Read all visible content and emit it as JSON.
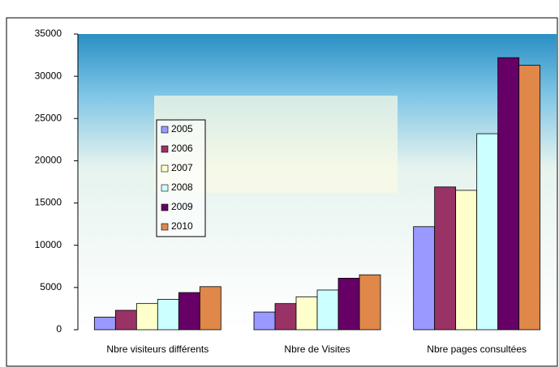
{
  "chart_data": {
    "type": "bar",
    "categories": [
      "Nbre visiteurs différents",
      "Nbre de Visites",
      "Nbre pages consultées"
    ],
    "series": [
      {
        "name": "2005",
        "color": "#9999ff",
        "values": [
          1500,
          2100,
          12200
        ]
      },
      {
        "name": "2006",
        "color": "#993366",
        "values": [
          2300,
          3100,
          16900
        ]
      },
      {
        "name": "2007",
        "color": "#ffffcc",
        "values": [
          3100,
          3900,
          16500
        ]
      },
      {
        "name": "2008",
        "color": "#ccffff",
        "values": [
          3600,
          4700,
          23200
        ]
      },
      {
        "name": "2009",
        "color": "#660066",
        "values": [
          4400,
          6100,
          32200
        ]
      },
      {
        "name": "2010",
        "color": "#e0874a",
        "values": [
          5100,
          6500,
          31300
        ]
      }
    ],
    "ylim": [
      0,
      35000
    ],
    "yticks": [
      0,
      5000,
      10000,
      15000,
      20000,
      25000,
      30000,
      35000
    ],
    "grid": false,
    "legend": "left"
  }
}
